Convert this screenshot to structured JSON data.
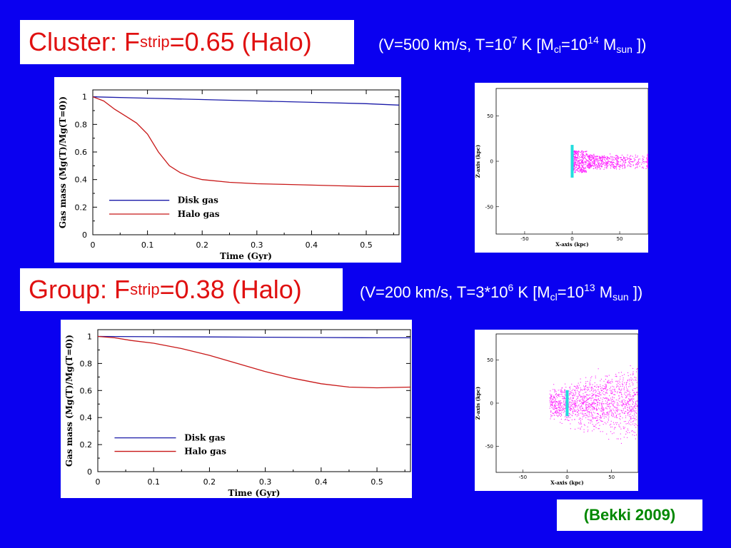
{
  "slide": {
    "cluster": {
      "title_main": "Cluster: F",
      "title_sub": "strip",
      "title_rest": "=0.65 (Halo)",
      "params": {
        "p1": "(V=500 km/s, T=10",
        "p1_sup": "7",
        "p2": " K [M",
        "p2_sub": "cl",
        "p3": "=10",
        "p3_sup": "14",
        "p4": " M",
        "p4_sub": "sun",
        "p5": " ])"
      }
    },
    "group": {
      "title_main": "Group: F",
      "title_sub": "strip",
      "title_rest": "=0.38 (Halo)",
      "params": {
        "p1": "(V=200 km/s, T=3*10",
        "p1_sup": "6",
        "p2": " K [M",
        "p2_sub": "cl",
        "p3": "=10",
        "p3_sup": "13",
        "p4": " M",
        "p4_sub": "sun",
        "p5": " ])"
      }
    },
    "reference": "(Bekki 2009)",
    "colors": {
      "background": "#0a00f0",
      "title": "#e01010",
      "disk_line": "#1a1aa8",
      "halo_line": "#c81818",
      "sim_gas": "#ff22ff",
      "sim_disk": "#22dddd",
      "reference": "#008800"
    }
  },
  "chart_data": [
    {
      "type": "line",
      "xlabel": "Time (Gyr)",
      "ylabel": "Gas mass (Mg(T)/Mg(T=0))",
      "xlim": [
        0,
        0.56
      ],
      "ylim": [
        0,
        1.05
      ],
      "xticks": [
        "0",
        "0.1",
        "0.2",
        "0.3",
        "0.4",
        "0.5"
      ],
      "yticks": [
        "0",
        "0.2",
        "0.4",
        "0.6",
        "0.8",
        "1"
      ],
      "legend": "bottom-left",
      "series": [
        {
          "name": "Disk gas",
          "color": "#1a1aa8",
          "x": [
            0,
            0.1,
            0.2,
            0.3,
            0.4,
            0.5,
            0.56
          ],
          "y": [
            1.0,
            0.99,
            0.98,
            0.97,
            0.96,
            0.95,
            0.94
          ]
        },
        {
          "name": "Halo gas",
          "color": "#c81818",
          "x": [
            0,
            0.02,
            0.04,
            0.06,
            0.08,
            0.1,
            0.12,
            0.14,
            0.16,
            0.18,
            0.2,
            0.25,
            0.3,
            0.35,
            0.4,
            0.45,
            0.5,
            0.56
          ],
          "y": [
            1.0,
            0.97,
            0.91,
            0.86,
            0.81,
            0.73,
            0.6,
            0.5,
            0.45,
            0.42,
            0.4,
            0.38,
            0.37,
            0.365,
            0.36,
            0.355,
            0.35,
            0.35
          ]
        }
      ]
    },
    {
      "type": "line",
      "xlabel": "Time (Gyr)",
      "ylabel": "Gas mass (Mg(T)/Mg(T=0))",
      "xlim": [
        0,
        0.56
      ],
      "ylim": [
        0,
        1.05
      ],
      "xticks": [
        "0",
        "0.1",
        "0.2",
        "0.3",
        "0.4",
        "0.5"
      ],
      "yticks": [
        "0",
        "0.2",
        "0.4",
        "0.6",
        "0.8",
        "1"
      ],
      "legend": "bottom-left",
      "series": [
        {
          "name": "Disk gas",
          "color": "#1a1aa8",
          "x": [
            0,
            0.1,
            0.2,
            0.3,
            0.4,
            0.5,
            0.56
          ],
          "y": [
            1.0,
            0.998,
            0.996,
            0.994,
            0.992,
            0.99,
            0.99
          ]
        },
        {
          "name": "Halo gas",
          "color": "#c81818",
          "x": [
            0,
            0.03,
            0.06,
            0.1,
            0.15,
            0.2,
            0.25,
            0.3,
            0.35,
            0.4,
            0.45,
            0.5,
            0.56
          ],
          "y": [
            1.0,
            0.99,
            0.97,
            0.95,
            0.91,
            0.86,
            0.8,
            0.74,
            0.69,
            0.65,
            0.625,
            0.62,
            0.625
          ]
        }
      ]
    },
    {
      "type": "scatter",
      "xlabel": "X-axis (kpc)",
      "ylabel": "Z-axis (kpc)",
      "xlim": [
        -80,
        80
      ],
      "ylim": [
        -80,
        80
      ],
      "xticks": [
        "-50",
        "0",
        "50"
      ],
      "yticks": [
        "-50",
        "0",
        "50"
      ],
      "description_points": "gas particles stripped along +X"
    },
    {
      "type": "scatter",
      "xlabel": "X-axis (kpc)",
      "ylabel": "Z-axis (kpc)",
      "xlim": [
        -80,
        80
      ],
      "ylim": [
        -80,
        80
      ],
      "xticks": [
        "-50",
        "0",
        "50"
      ],
      "yticks": [
        "-50",
        "0",
        "50"
      ],
      "description_points": "gas particles stripped along +X"
    }
  ]
}
